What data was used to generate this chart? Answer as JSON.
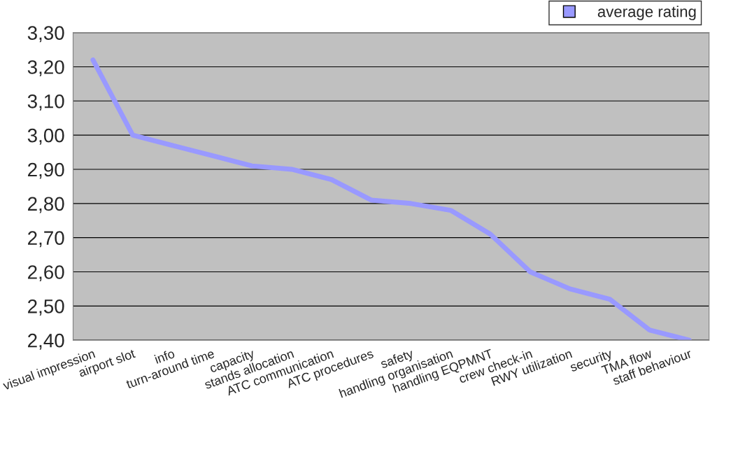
{
  "chart_data": {
    "type": "line",
    "categories": [
      "visual impression",
      "airport slot",
      "info",
      "turn-around time",
      "capacity",
      "stands allocation",
      "ATC communication",
      "ATC procedures",
      "safety",
      "handling organisation",
      "handling EQPMNT",
      "crew check-in",
      "RWY utilization",
      "security",
      "TMA flow",
      "staff behaviour"
    ],
    "series": [
      {
        "name": "average rating",
        "color": "#9999ff",
        "values": [
          3.22,
          3.0,
          2.97,
          2.94,
          2.91,
          2.9,
          2.87,
          2.81,
          2.8,
          2.78,
          2.71,
          2.6,
          2.55,
          2.52,
          2.43,
          2.4
        ]
      }
    ],
    "ylim": [
      2.4,
      3.3
    ],
    "yticks": [
      {
        "value": 2.4,
        "label": "2,40"
      },
      {
        "value": 2.5,
        "label": "2,50"
      },
      {
        "value": 2.6,
        "label": "2,60"
      },
      {
        "value": 2.7,
        "label": "2,70"
      },
      {
        "value": 2.8,
        "label": "2,80"
      },
      {
        "value": 2.9,
        "label": "2,90"
      },
      {
        "value": 3.0,
        "label": "3,00"
      },
      {
        "value": 3.1,
        "label": "3,10"
      },
      {
        "value": 3.2,
        "label": "3,20"
      },
      {
        "value": 3.3,
        "label": "3,30"
      }
    ],
    "grid": "y",
    "legend": "top right",
    "marker": "none",
    "line_style": "solid"
  }
}
